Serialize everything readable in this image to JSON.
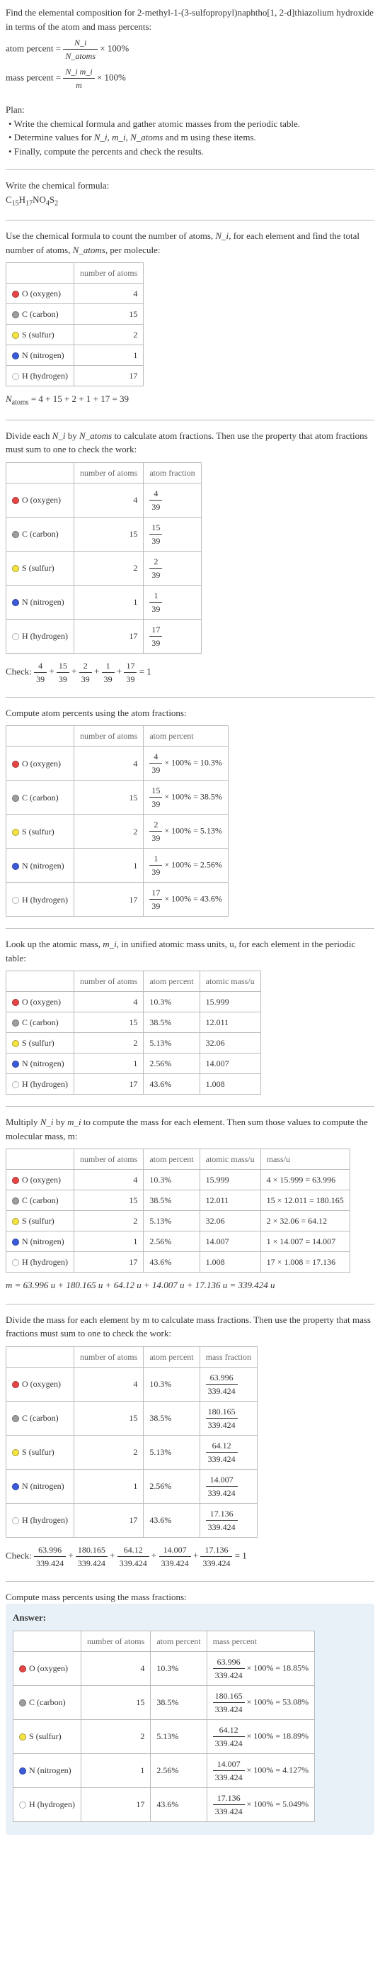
{
  "intro": {
    "line1": "Find the elemental composition for 2-methyl-1-(3-sulfopropyl)naphtho[1, 2-d]thiazolium hydroxide in terms of the atom and mass percents:",
    "atom_percent_label": "atom percent =",
    "atom_percent_frac_num": "N_i",
    "atom_percent_frac_den": "N_atoms",
    "times100": "× 100%",
    "mass_percent_label": "mass percent =",
    "mass_percent_frac_num": "N_i m_i",
    "mass_percent_frac_den": "m"
  },
  "plan": {
    "heading": "Plan:",
    "b1": "• Write the chemical formula and gather atomic masses from the periodic table.",
    "b2_pre": "• Determine values for ",
    "b2_vars": "N_i, m_i, N_atoms",
    "b2_post": " and m using these items.",
    "b3": "• Finally, compute the percents and check the results."
  },
  "chemformula": {
    "label": "Write the chemical formula:",
    "formula_plain": "C15H17NO4S2"
  },
  "count_text": {
    "pre": "Use the chemical formula to count the number of atoms, ",
    "ni": "N_i",
    "mid": ", for each element and find the total number of atoms, ",
    "na": "N_atoms",
    "post": ", per molecule:"
  },
  "elements": [
    {
      "sym": "O",
      "name": "O (oxygen)",
      "color": "#e64545",
      "n": "4",
      "atom_frac_num": "4",
      "atom_frac_den": "39",
      "atom_pct": "10.3%",
      "mass_u": "15.999",
      "mass_prod": "4 × 15.999 = 63.996",
      "mass_frac_num": "63.996",
      "mass_frac_den": "339.424",
      "mass_pct": "18.85%",
      "ap_calc": "× 100% = 10.3%"
    },
    {
      "sym": "C",
      "name": "C (carbon)",
      "color": "#9e9e9e",
      "n": "15",
      "atom_frac_num": "15",
      "atom_frac_den": "39",
      "atom_pct": "38.5%",
      "mass_u": "12.011",
      "mass_prod": "15 × 12.011 = 180.165",
      "mass_frac_num": "180.165",
      "mass_frac_den": "339.424",
      "mass_pct": "53.08%",
      "ap_calc": "× 100% = 38.5%"
    },
    {
      "sym": "S",
      "name": "S (sulfur)",
      "color": "#f5e342",
      "n": "2",
      "atom_frac_num": "2",
      "atom_frac_den": "39",
      "atom_pct": "5.13%",
      "mass_u": "32.06",
      "mass_prod": "2 × 32.06 = 64.12",
      "mass_frac_num": "64.12",
      "mass_frac_den": "339.424",
      "mass_pct": "18.89%",
      "ap_calc": "× 100% = 5.13%"
    },
    {
      "sym": "N",
      "name": "N (nitrogen)",
      "color": "#3b5bdb",
      "n": "1",
      "atom_frac_num": "1",
      "atom_frac_den": "39",
      "atom_pct": "2.56%",
      "mass_u": "14.007",
      "mass_prod": "1 × 14.007 = 14.007",
      "mass_frac_num": "14.007",
      "mass_frac_den": "339.424",
      "mass_pct": "4.127%",
      "ap_calc": "× 100% = 2.56%"
    },
    {
      "sym": "H",
      "name": "H (hydrogen)",
      "color": "#ffffff",
      "n": "17",
      "atom_frac_num": "17",
      "atom_frac_den": "39",
      "atom_pct": "43.6%",
      "mass_u": "1.008",
      "mass_prod": "17 × 1.008 = 17.136",
      "mass_frac_num": "17.136",
      "mass_frac_den": "339.424",
      "mass_pct": "5.049%",
      "ap_calc": "× 100% = 43.6%"
    }
  ],
  "headers": {
    "num_atoms": "number of atoms",
    "atom_fraction": "atom fraction",
    "atom_percent": "atom percent",
    "atomic_mass": "atomic mass/u",
    "mass_u": "mass/u",
    "mass_fraction": "mass fraction",
    "mass_percent": "mass percent"
  },
  "natoms_line": "N_atoms = 4 + 15 + 2 + 1 + 17 = 39",
  "divide_text": {
    "pre": "Divide each ",
    "ni": "N_i",
    "mid": " by ",
    "na": "N_atoms",
    "post": " to calculate atom fractions. Then use the property that atom fractions must sum to one to check the work:"
  },
  "check1": {
    "label": "Check: ",
    "eq": " = 1"
  },
  "atom_pct_text": "Compute atom percents using the atom fractions:",
  "lookup_text": {
    "pre": "Look up the atomic mass, ",
    "mi": "m_i",
    "post": ", in unified atomic mass units, u, for each element in the periodic table:"
  },
  "multiply_text": {
    "pre": "Multiply ",
    "ni": "N_i",
    "mid": " by ",
    "mi": "m_i",
    "post": " to compute the mass for each element. Then sum those values to compute the molecular mass, m:"
  },
  "m_line": "m = 63.996 u + 180.165 u + 64.12 u + 14.007 u + 17.136 u = 339.424 u",
  "mass_frac_text": "Divide the mass for each element by m to calculate mass fractions. Then use the property that mass fractions must sum to one to check the work:",
  "mass_pct_text": "Compute mass percents using the mass fractions:",
  "answer_label": "Answer:"
}
